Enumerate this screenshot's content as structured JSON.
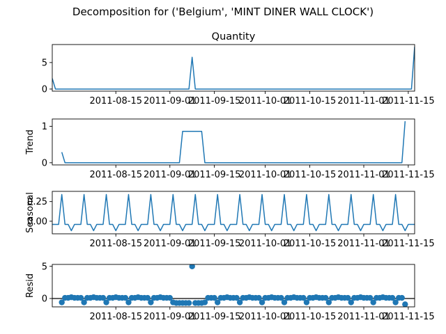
{
  "figure_title": "Decomposition for ('Belgium', 'MINT DINER WALL CLOCK')",
  "chart_data": [
    {
      "type": "line",
      "title": "Quantity",
      "ylabel": "",
      "xlim": [
        "2011-07-26",
        "2011-11-17"
      ],
      "ylim": [
        -0.4,
        8.4
      ],
      "yticks": [
        0,
        5
      ],
      "xticks": [
        "2011-08-15",
        "2011-09-01",
        "2011-09-15",
        "2011-10-01",
        "2011-10-15",
        "2011-11-01",
        "2011-11-15"
      ],
      "series": [
        {
          "points": [
            [
              "2011-07-26",
              2
            ],
            [
              "2011-07-27",
              0
            ],
            [
              "2011-09-07",
              0
            ],
            [
              "2011-09-08",
              6
            ],
            [
              "2011-09-09",
              0
            ],
            [
              "2011-11-16",
              0
            ],
            [
              "2011-11-17",
              8
            ]
          ]
        }
      ]
    },
    {
      "type": "line",
      "title": "",
      "ylabel": "Trend",
      "xlim": [
        "2011-07-26",
        "2011-11-17"
      ],
      "ylim": [
        -0.06,
        1.2
      ],
      "yticks": [
        0,
        1
      ],
      "xticks": [
        "2011-08-15",
        "2011-09-01",
        "2011-09-15",
        "2011-10-01",
        "2011-10-15",
        "2011-11-01",
        "2011-11-15"
      ],
      "series": [
        {
          "points": [
            [
              "2011-07-29",
              0.29
            ],
            [
              "2011-07-30",
              0
            ],
            [
              "2011-09-04",
              0
            ],
            [
              "2011-09-05",
              0.86
            ],
            [
              "2011-09-11",
              0.86
            ],
            [
              "2011-09-12",
              0
            ],
            [
              "2011-11-13",
              0
            ],
            [
              "2011-11-14",
              1.14
            ]
          ]
        }
      ]
    },
    {
      "type": "line",
      "title": "",
      "ylabel": "Seasonal",
      "xlim": [
        "2011-07-26",
        "2011-11-17"
      ],
      "ylim": [
        -0.16,
        0.38
      ],
      "yticks": [
        0.25,
        0.0
      ],
      "ytick_labels": [
        "0.25",
        "0.00"
      ],
      "xticks": [
        "2011-08-15",
        "2011-09-01",
        "2011-09-15",
        "2011-10-01",
        "2011-10-15",
        "2011-11-01",
        "2011-11-15"
      ],
      "weekly_pattern": [
        0.34,
        -0.04,
        -0.04,
        -0.12,
        -0.04,
        -0.04,
        -0.04
      ],
      "pattern_start": "2011-07-29",
      "series": []
    },
    {
      "type": "scatter",
      "title": "",
      "ylabel": "Resid",
      "xlim": [
        "2011-07-26",
        "2011-11-17"
      ],
      "ylim": [
        -1.3,
        5.3
      ],
      "yticks": [
        0,
        5
      ],
      "xticks": [
        "2011-08-15",
        "2011-09-01",
        "2011-09-15",
        "2011-10-01",
        "2011-10-15",
        "2011-11-01",
        "2011-11-15"
      ],
      "zero_line": true,
      "resid_start": "2011-07-29",
      "resid_end": "2011-11-14",
      "resid_pattern": [
        -0.6,
        0.1,
        0.1,
        0.2,
        0.1,
        0.1,
        0.1
      ],
      "resid_overrides": [
        [
          "2011-09-03",
          -0.7
        ],
        [
          "2011-09-04",
          -0.7
        ],
        [
          "2011-09-05",
          -0.7
        ],
        [
          "2011-09-06",
          -0.7
        ],
        [
          "2011-09-07",
          -0.7
        ],
        [
          "2011-09-08",
          5.0
        ],
        [
          "2011-09-09",
          -0.7
        ],
        [
          "2011-09-10",
          -0.7
        ],
        [
          "2011-09-11",
          -0.7
        ],
        [
          "2011-09-12",
          -0.6
        ],
        [
          "2011-11-14",
          -0.9
        ]
      ],
      "series": []
    }
  ],
  "colors": {
    "line": "#1f77b4",
    "axis": "#000000",
    "background": "#ffffff"
  }
}
